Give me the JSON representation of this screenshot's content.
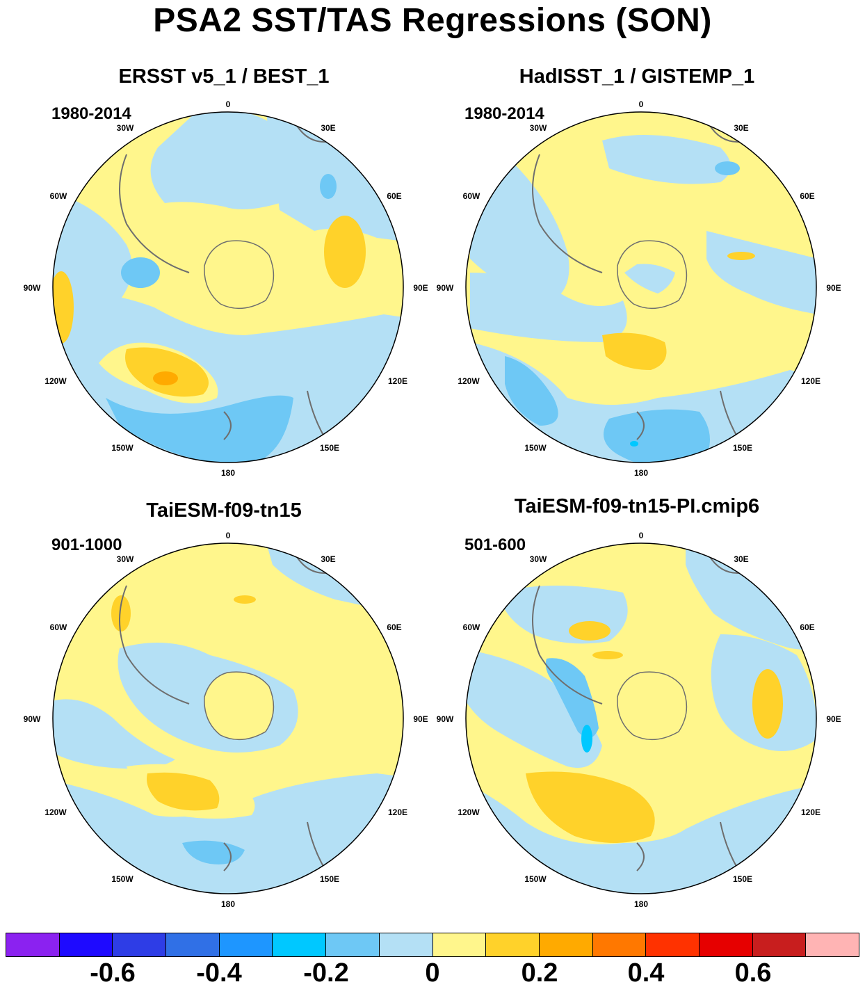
{
  "title": "PSA2 SST/TAS Regressions (SON)",
  "panels": [
    {
      "title": "ERSST v5_1 / BEST_1",
      "period": "1980-2014"
    },
    {
      "title": "HadISST_1 / GISTEMP_1",
      "period": "1980-2014"
    },
    {
      "title": "TaiESM-f09-tn15",
      "period": "901-1000"
    },
    {
      "title": "TaiESM-f09-tn15-PI.cmip6",
      "period": "501-600"
    }
  ],
  "longitude_labels": [
    "0",
    "30E",
    "60E",
    "90E",
    "120E",
    "150E",
    "180",
    "150W",
    "120W",
    "90W",
    "60W",
    "30W"
  ],
  "colorbar": {
    "colors": [
      "#8b22f0",
      "#1e0aff",
      "#2e3de6",
      "#3070e6",
      "#1e96ff",
      "#00c8ff",
      "#6ec8f5",
      "#b4e0f5",
      "#fff68c",
      "#ffd22a",
      "#ffaa00",
      "#ff7800",
      "#ff3200",
      "#e60000",
      "#c81e1e",
      "#ffb4b4"
    ],
    "labels": [
      "-0.6",
      "-0.4",
      "-0.2",
      "0",
      "0.2",
      "0.4",
      "0.6"
    ]
  },
  "colors": {
    "ocean_neutral_negative": "#b4e0f5",
    "ocean_neutral_positive": "#fff68c",
    "moderate_positive": "#ffd22a",
    "strong_positive": "#ffaa00",
    "moderate_negative": "#6ec8f5",
    "strong_negative": "#00c8ff",
    "coastline": "#6e6e6e"
  }
}
